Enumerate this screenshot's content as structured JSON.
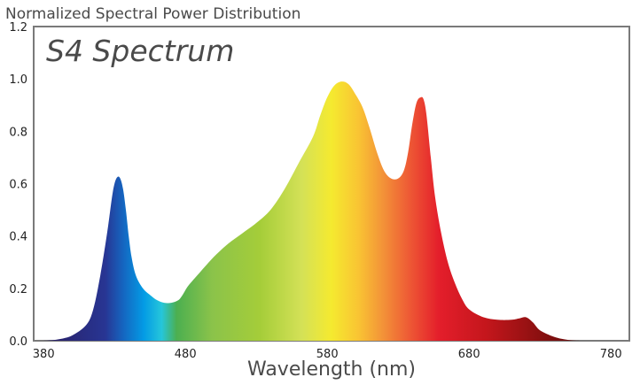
{
  "chart_data": {
    "type": "area",
    "title": "Normalized Spectral Power Distribution",
    "subtitle": "S4 Spectrum",
    "xlabel": "Wavelength (nm)",
    "ylabel": "",
    "xlim": [
      373,
      793
    ],
    "ylim": [
      0,
      1.2
    ],
    "x_ticks": [
      380,
      480,
      580,
      680,
      780
    ],
    "y_ticks": [
      0.0,
      0.2,
      0.4,
      0.6,
      0.8,
      1.0,
      1.2
    ],
    "y_tick_labels": [
      "0.0",
      "0.2",
      "0.4",
      "0.6",
      "0.8",
      "1.0",
      "1.2"
    ],
    "grid": false,
    "legend": "none",
    "fill": "visible-spectrum gradient",
    "frame_color": "#7a7a7a",
    "series": [
      {
        "x": [
          380,
          390,
          400,
          410,
          415,
          420,
          425,
          428,
          430,
          432,
          434,
          436,
          438,
          440,
          442,
          445,
          450,
          455,
          460,
          465,
          470,
          475,
          478,
          482,
          490,
          500,
          510,
          520,
          530,
          540,
          550,
          560,
          570,
          575,
          580,
          585,
          590,
          595,
          600,
          605,
          610,
          615,
          620,
          625,
          630,
          634,
          637,
          640,
          643,
          646,
          648,
          650,
          653,
          656,
          660,
          665,
          670,
          675,
          680,
          690,
          700,
          710,
          715,
          720,
          725,
          730,
          740,
          750,
          760
        ],
        "values": [
          0.0,
          0.005,
          0.02,
          0.06,
          0.12,
          0.25,
          0.42,
          0.54,
          0.6,
          0.625,
          0.62,
          0.58,
          0.5,
          0.4,
          0.32,
          0.25,
          0.2,
          0.175,
          0.155,
          0.145,
          0.145,
          0.155,
          0.175,
          0.21,
          0.26,
          0.32,
          0.37,
          0.41,
          0.45,
          0.5,
          0.58,
          0.68,
          0.78,
          0.86,
          0.93,
          0.975,
          0.99,
          0.98,
          0.94,
          0.89,
          0.81,
          0.72,
          0.65,
          0.62,
          0.62,
          0.65,
          0.72,
          0.83,
          0.91,
          0.93,
          0.92,
          0.86,
          0.7,
          0.55,
          0.42,
          0.3,
          0.22,
          0.16,
          0.12,
          0.09,
          0.08,
          0.08,
          0.085,
          0.09,
          0.07,
          0.04,
          0.015,
          0.003,
          0.0
        ]
      }
    ]
  }
}
